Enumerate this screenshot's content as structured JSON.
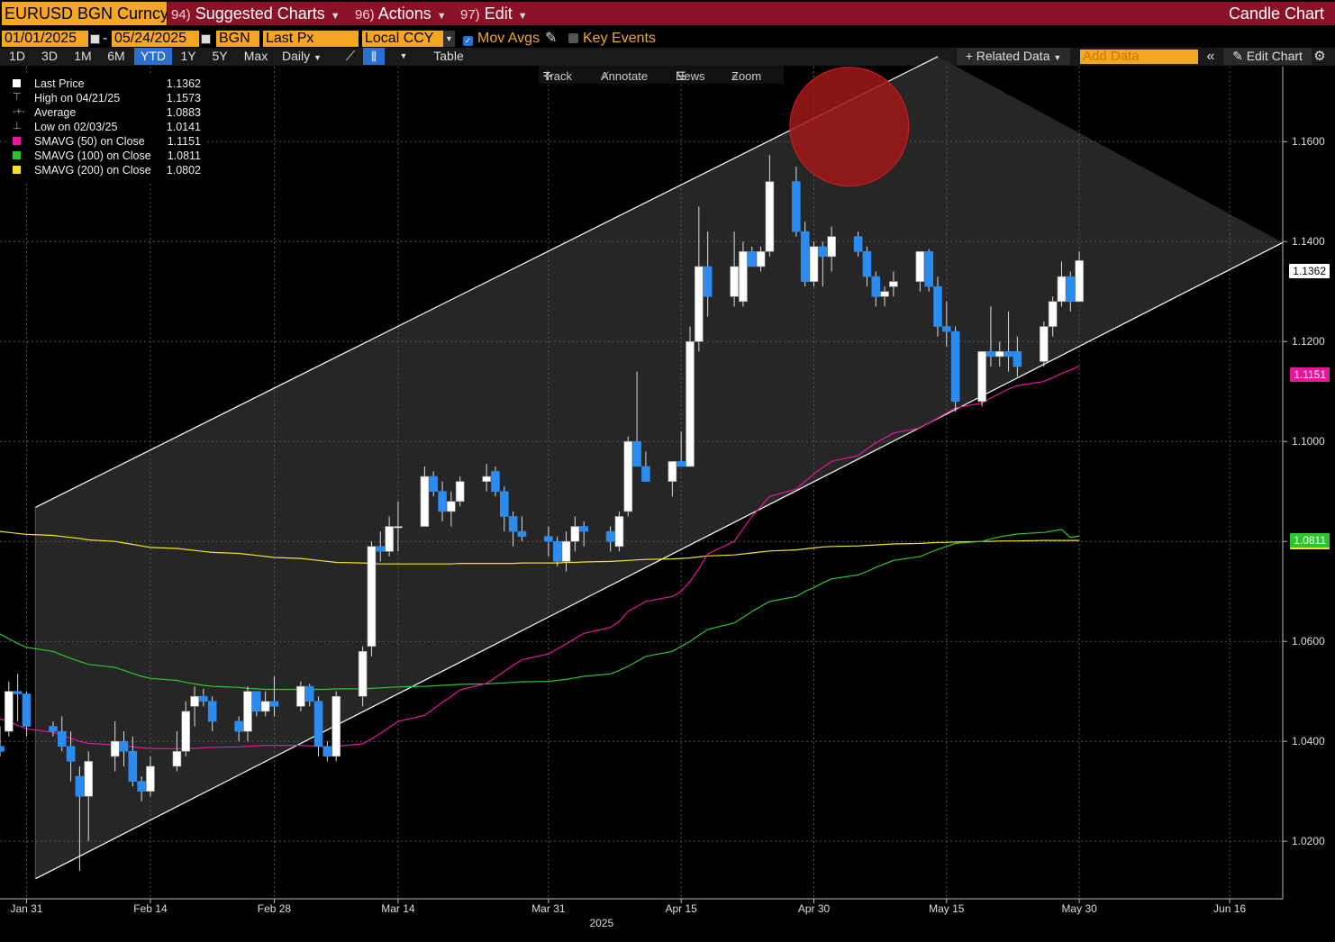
{
  "header": {
    "ticker": "EURUSD BGN Curncy",
    "menus": [
      {
        "num": "94)",
        "label": "Suggested Charts"
      },
      {
        "num": "96)",
        "label": "Actions"
      },
      {
        "num": "97)",
        "label": "Edit"
      }
    ],
    "chart_title": "Candle Chart"
  },
  "controls": {
    "start_date": "01/01/2025",
    "end_date": "05/24/2025",
    "source": "BGN",
    "field": "Last Px",
    "currency": "Local CCY",
    "mov_avgs": "Mov Avgs",
    "key_events": "Key Events"
  },
  "toolbar": {
    "ranges": [
      "1D",
      "3D",
      "1M",
      "6M",
      "YTD",
      "1Y",
      "5Y",
      "Max"
    ],
    "selected_range": "YTD",
    "frequency": "Daily",
    "table": "Table",
    "related_data": "Related Data",
    "add_data_placeholder": "Add Data",
    "edit_chart": "Edit Chart"
  },
  "chart_tools": [
    "Track",
    "Annotate",
    "News",
    "Zoom"
  ],
  "legend": [
    {
      "label": "Last Price",
      "value": "1.1362",
      "color": "#ffffff"
    },
    {
      "label": "High on 04/21/25",
      "value": "1.1573",
      "color": "#888888"
    },
    {
      "label": "Average",
      "value": "1.0883",
      "color": "#888888"
    },
    {
      "label": "Low on 02/03/25",
      "value": "1.0141",
      "color": "#888888"
    },
    {
      "label": "SMAVG (50)  on Close",
      "value": "1.1151",
      "color": "#e5179a"
    },
    {
      "label": "SMAVG (100)  on Close",
      "value": "1.0811",
      "color": "#2fc32f"
    },
    {
      "label": "SMAVG (200)  on Close",
      "value": "1.0802",
      "color": "#f2e22a"
    }
  ],
  "value_labels": {
    "last": "1.1362",
    "sma50": "1.1151",
    "sma100": "1.0811"
  },
  "chart_data": {
    "type": "candlestick",
    "x_start": "2025-01-28",
    "x_end": "2025-06-22",
    "ylim": [
      1.0085,
      1.175
    ],
    "y_ticks": [
      "1.0200",
      "1.0400",
      "1.0600",
      "1.0800",
      "1.1000",
      "1.1200",
      "1.1400",
      "1.1600"
    ],
    "x_ticks": [
      "Jan 31",
      "Feb 14",
      "Feb 28",
      "Mar 14",
      "Mar 31",
      "Apr 15",
      "Apr 30",
      "May 15",
      "May 30",
      "Jun 16"
    ],
    "year_label": "2025",
    "candles": [
      {
        "o": 1.039,
        "h": 1.043,
        "l": 1.037,
        "c": 1.038
      },
      {
        "o": 1.042,
        "h": 1.052,
        "l": 1.041,
        "c": 1.05
      },
      {
        "o": 1.05,
        "h": 1.0535,
        "l": 1.044,
        "c": 1.0495
      },
      {
        "o": 1.0495,
        "h": 1.05,
        "l": 1.041,
        "c": 1.043
      },
      {
        "o": 1.043,
        "h": 1.044,
        "l": 1.041,
        "c": 1.042
      },
      {
        "o": 1.042,
        "h": 1.045,
        "l": 1.038,
        "c": 1.039
      },
      {
        "o": 1.039,
        "h": 1.042,
        "l": 1.032,
        "c": 1.036
      },
      {
        "o": 1.033,
        "h": 1.035,
        "l": 1.0141,
        "c": 1.029
      },
      {
        "o": 1.029,
        "h": 1.038,
        "l": 1.02,
        "c": 1.036
      },
      {
        "o": 1.037,
        "h": 1.044,
        "l": 1.034,
        "c": 1.04
      },
      {
        "o": 1.04,
        "h": 1.042,
        "l": 1.035,
        "c": 1.038
      },
      {
        "o": 1.038,
        "h": 1.041,
        "l": 1.031,
        "c": 1.032
      },
      {
        "o": 1.032,
        "h": 1.033,
        "l": 1.028,
        "c": 1.03
      },
      {
        "o": 1.03,
        "h": 1.037,
        "l": 1.029,
        "c": 1.035
      },
      {
        "o": 1.035,
        "h": 1.042,
        "l": 1.034,
        "c": 1.038
      },
      {
        "o": 1.038,
        "h": 1.048,
        "l": 1.037,
        "c": 1.046
      },
      {
        "o": 1.047,
        "h": 1.051,
        "l": 1.043,
        "c": 1.049
      },
      {
        "o": 1.049,
        "h": 1.0505,
        "l": 1.047,
        "c": 1.048
      },
      {
        "o": 1.048,
        "h": 1.049,
        "l": 1.042,
        "c": 1.044
      },
      {
        "o": 1.044,
        "h": 1.045,
        "l": 1.04,
        "c": 1.042
      },
      {
        "o": 1.042,
        "h": 1.051,
        "l": 1.04,
        "c": 1.05
      },
      {
        "o": 1.05,
        "h": 1.05,
        "l": 1.045,
        "c": 1.046
      },
      {
        "o": 1.046,
        "h": 1.05,
        "l": 1.045,
        "c": 1.048
      },
      {
        "o": 1.048,
        "h": 1.053,
        "l": 1.045,
        "c": 1.047
      },
      {
        "o": 1.047,
        "h": 1.052,
        "l": 1.046,
        "c": 1.051
      },
      {
        "o": 1.051,
        "h": 1.0515,
        "l": 1.047,
        "c": 1.048
      },
      {
        "o": 1.048,
        "h": 1.049,
        "l": 1.037,
        "c": 1.039
      },
      {
        "o": 1.039,
        "h": 1.04,
        "l": 1.036,
        "c": 1.037
      },
      {
        "o": 1.037,
        "h": 1.05,
        "l": 1.036,
        "c": 1.049
      },
      {
        "o": 1.049,
        "h": 1.059,
        "l": 1.047,
        "c": 1.058
      },
      {
        "o": 1.059,
        "h": 1.08,
        "l": 1.057,
        "c": 1.079
      },
      {
        "o": 1.079,
        "h": 1.082,
        "l": 1.076,
        "c": 1.078
      },
      {
        "o": 1.078,
        "h": 1.085,
        "l": 1.077,
        "c": 1.083
      },
      {
        "o": 1.083,
        "h": 1.088,
        "l": 1.078,
        "c": 1.083
      },
      {
        "o": 1.083,
        "h": 1.095,
        "l": 1.083,
        "c": 1.093
      },
      {
        "o": 1.093,
        "h": 1.094,
        "l": 1.089,
        "c": 1.09
      },
      {
        "o": 1.09,
        "h": 1.092,
        "l": 1.084,
        "c": 1.086
      },
      {
        "o": 1.086,
        "h": 1.09,
        "l": 1.083,
        "c": 1.088
      },
      {
        "o": 1.088,
        "h": 1.093,
        "l": 1.087,
        "c": 1.092
      },
      {
        "o": 1.092,
        "h": 1.0955,
        "l": 1.09,
        "c": 1.093
      },
      {
        "o": 1.094,
        "h": 1.095,
        "l": 1.089,
        "c": 1.09
      },
      {
        "o": 1.09,
        "h": 1.091,
        "l": 1.082,
        "c": 1.085
      },
      {
        "o": 1.085,
        "h": 1.086,
        "l": 1.079,
        "c": 1.082
      },
      {
        "o": 1.082,
        "h": 1.085,
        "l": 1.08,
        "c": 1.081
      },
      {
        "o": 1.081,
        "h": 1.083,
        "l": 1.077,
        "c": 1.08
      },
      {
        "o": 1.08,
        "h": 1.081,
        "l": 1.075,
        "c": 1.076
      },
      {
        "o": 1.076,
        "h": 1.082,
        "l": 1.074,
        "c": 1.08
      },
      {
        "o": 1.08,
        "h": 1.085,
        "l": 1.078,
        "c": 1.083
      },
      {
        "o": 1.083,
        "h": 1.084,
        "l": 1.079,
        "c": 1.082
      },
      {
        "o": 1.082,
        "h": 1.083,
        "l": 1.078,
        "c": 1.08
      },
      {
        "o": 1.079,
        "h": 1.086,
        "l": 1.078,
        "c": 1.085
      },
      {
        "o": 1.086,
        "h": 1.101,
        "l": 1.085,
        "c": 1.1
      },
      {
        "o": 1.1,
        "h": 1.114,
        "l": 1.095,
        "c": 1.095
      },
      {
        "o": 1.095,
        "h": 1.098,
        "l": 1.092,
        "c": 1.092
      },
      {
        "o": 1.092,
        "h": 1.095,
        "l": 1.089,
        "c": 1.096
      },
      {
        "o": 1.096,
        "h": 1.102,
        "l": 1.095,
        "c": 1.095
      },
      {
        "o": 1.095,
        "h": 1.123,
        "l": 1.095,
        "c": 1.12
      },
      {
        "o": 1.12,
        "h": 1.147,
        "l": 1.118,
        "c": 1.135
      },
      {
        "o": 1.135,
        "h": 1.142,
        "l": 1.125,
        "c": 1.129
      },
      {
        "o": 1.129,
        "h": 1.142,
        "l": 1.127,
        "c": 1.135
      },
      {
        "o": 1.128,
        "h": 1.14,
        "l": 1.127,
        "c": 1.138
      },
      {
        "o": 1.138,
        "h": 1.139,
        "l": 1.135,
        "c": 1.135
      },
      {
        "o": 1.135,
        "h": 1.139,
        "l": 1.134,
        "c": 1.138
      },
      {
        "o": 1.138,
        "h": 1.1573,
        "l": 1.137,
        "c": 1.152
      },
      {
        "o": 1.152,
        "h": 1.155,
        "l": 1.141,
        "c": 1.142
      },
      {
        "o": 1.142,
        "h": 1.144,
        "l": 1.131,
        "c": 1.132
      },
      {
        "o": 1.132,
        "h": 1.14,
        "l": 1.131,
        "c": 1.139
      },
      {
        "o": 1.139,
        "h": 1.14,
        "l": 1.131,
        "c": 1.137
      },
      {
        "o": 1.137,
        "h": 1.143,
        "l": 1.134,
        "c": 1.141
      },
      {
        "o": 1.141,
        "h": 1.142,
        "l": 1.137,
        "c": 1.138
      },
      {
        "o": 1.138,
        "h": 1.139,
        "l": 1.131,
        "c": 1.133
      },
      {
        "o": 1.133,
        "h": 1.134,
        "l": 1.127,
        "c": 1.129
      },
      {
        "o": 1.129,
        "h": 1.131,
        "l": 1.127,
        "c": 1.13
      },
      {
        "o": 1.131,
        "h": 1.134,
        "l": 1.129,
        "c": 1.132
      },
      {
        "o": 1.132,
        "h": 1.138,
        "l": 1.13,
        "c": 1.138
      },
      {
        "o": 1.138,
        "h": 1.1385,
        "l": 1.13,
        "c": 1.131
      },
      {
        "o": 1.131,
        "h": 1.133,
        "l": 1.121,
        "c": 1.123
      },
      {
        "o": 1.123,
        "h": 1.128,
        "l": 1.119,
        "c": 1.122
      },
      {
        "o": 1.122,
        "h": 1.123,
        "l": 1.106,
        "c": 1.108
      },
      {
        "o": 1.108,
        "h": 1.118,
        "l": 1.107,
        "c": 1.118
      },
      {
        "o": 1.118,
        "h": 1.127,
        "l": 1.115,
        "c": 1.117
      },
      {
        "o": 1.117,
        "h": 1.12,
        "l": 1.115,
        "c": 1.118
      },
      {
        "o": 1.118,
        "h": 1.126,
        "l": 1.114,
        "c": 1.117
      },
      {
        "o": 1.118,
        "h": 1.121,
        "l": 1.113,
        "c": 1.115
      },
      {
        "o": 1.116,
        "h": 1.124,
        "l": 1.115,
        "c": 1.123
      },
      {
        "o": 1.123,
        "h": 1.129,
        "l": 1.121,
        "c": 1.128
      },
      {
        "o": 1.128,
        "h": 1.136,
        "l": 1.127,
        "c": 1.133
      },
      {
        "o": 1.133,
        "h": 1.134,
        "l": 1.126,
        "c": 1.128
      },
      {
        "o": 1.128,
        "h": 1.138,
        "l": 1.128,
        "c": 1.1362
      }
    ],
    "sma50": [
      1.0445,
      1.044,
      1.0432,
      1.0425,
      1.0418,
      1.0412,
      1.0406,
      1.04,
      1.0396,
      1.0393,
      1.0391,
      1.0389,
      1.0387,
      1.0386,
      1.0385,
      1.0385,
      1.0386,
      1.0387,
      1.0388,
      1.0389,
      1.039,
      1.0391,
      1.0392,
      1.0392,
      1.0392,
      1.0391,
      1.039,
      1.0389,
      1.039,
      1.0395,
      1.0405,
      1.0416,
      1.0428,
      1.044,
      1.0452,
      1.0465,
      1.0478,
      1.049,
      1.0503,
      1.0516,
      1.0528,
      1.054,
      1.0552,
      1.0563,
      1.0575,
      1.0585,
      1.0595,
      1.0606,
      1.0616,
      1.0628,
      1.064,
      1.066,
      1.067,
      1.068,
      1.069,
      1.07,
      1.072,
      1.0745,
      1.0775,
      1.08,
      1.0825,
      1.085,
      1.087,
      1.089,
      1.0905,
      1.092,
      1.0935,
      1.0948,
      1.096,
      1.0972,
      1.0985,
      1.0997,
      1.1007,
      1.1017,
      1.1027,
      1.1037,
      1.1047,
      1.1057,
      1.1067,
      1.1077,
      1.1087,
      1.1096,
      1.1105,
      1.1112,
      1.112,
      1.1128,
      1.1136,
      1.1143,
      1.1151
    ],
    "sma100": [
      1.0615,
      1.0605,
      1.0596,
      1.0588,
      1.058,
      1.0573,
      1.0566,
      1.056,
      1.0554,
      1.0548,
      1.0542,
      1.0536,
      1.053,
      1.0526,
      1.0522,
      1.0518,
      1.0515,
      1.0512,
      1.051,
      1.0508,
      1.0506,
      1.0505,
      1.0504,
      1.0504,
      1.0504,
      1.0504,
      1.0504,
      1.0504,
      1.0505,
      1.0505,
      1.0506,
      1.0507,
      1.0508,
      1.0509,
      1.051,
      1.0511,
      1.0512,
      1.0513,
      1.0514,
      1.0515,
      1.0516,
      1.0517,
      1.0518,
      1.0519,
      1.052,
      1.0522,
      1.0524,
      1.0527,
      1.053,
      1.0535,
      1.0542,
      1.055,
      1.056,
      1.057,
      1.058,
      1.059,
      1.06,
      1.0612,
      1.0624,
      1.0637,
      1.0648,
      1.066,
      1.067,
      1.068,
      1.069,
      1.07,
      1.0708,
      1.0717,
      1.0725,
      1.0733,
      1.074,
      1.0748,
      1.0755,
      1.0762,
      1.077,
      1.0777,
      1.0784,
      1.079,
      1.0796,
      1.08,
      1.0805,
      1.0809,
      1.0812,
      1.0815,
      1.0818,
      1.0821,
      1.0824,
      1.0808,
      1.0811
    ],
    "sma200": [
      1.082,
      1.0818,
      1.0816,
      1.0814,
      1.0812,
      1.081,
      1.0808,
      1.0806,
      1.0803,
      1.08,
      1.0797,
      1.0794,
      1.0791,
      1.0788,
      1.0786,
      1.0784,
      1.0782,
      1.078,
      1.0778,
      1.0776,
      1.0774,
      1.0772,
      1.077,
      1.0768,
      1.0766,
      1.0764,
      1.0762,
      1.076,
      1.0758,
      1.0757,
      1.0756,
      1.0755,
      1.0755,
      1.0755,
      1.0755,
      1.0755,
      1.0755,
      1.0755,
      1.0756,
      1.0756,
      1.0756,
      1.0756,
      1.0756,
      1.0757,
      1.0757,
      1.0757,
      1.0758,
      1.0758,
      1.0759,
      1.076,
      1.0761,
      1.0762,
      1.0763,
      1.0764,
      1.0765,
      1.0766,
      1.0767,
      1.0769,
      1.0771,
      1.0773,
      1.0775,
      1.0777,
      1.0779,
      1.0781,
      1.0783,
      1.0785,
      1.0787,
      1.0789,
      1.079,
      1.0791,
      1.0792,
      1.0793,
      1.0794,
      1.0795,
      1.0796,
      1.0797,
      1.0798,
      1.0798,
      1.0799,
      1.08,
      1.08,
      1.0801,
      1.0801,
      1.0801,
      1.0802,
      1.0802,
      1.0802,
      1.0802,
      1.0802
    ],
    "channel": {
      "upper": [
        {
          "x": "2025-02-01",
          "y": 1.0868
        },
        {
          "x": "2025-05-14",
          "y": 1.177
        }
      ],
      "lower": [
        {
          "x": "2025-02-01",
          "y": 1.0125
        },
        {
          "x": "2025-06-22",
          "y": 1.1398
        }
      ]
    },
    "colors": {
      "up": "#ffffff",
      "down": "#2a8cf0",
      "sma50": "#e5179a",
      "sma100": "#2fc32f",
      "sma200": "#f2e22a",
      "channel_fill": "#262626",
      "marker": "#a11818"
    },
    "marker": {
      "x": "2025-05-04",
      "y": 1.163
    }
  }
}
